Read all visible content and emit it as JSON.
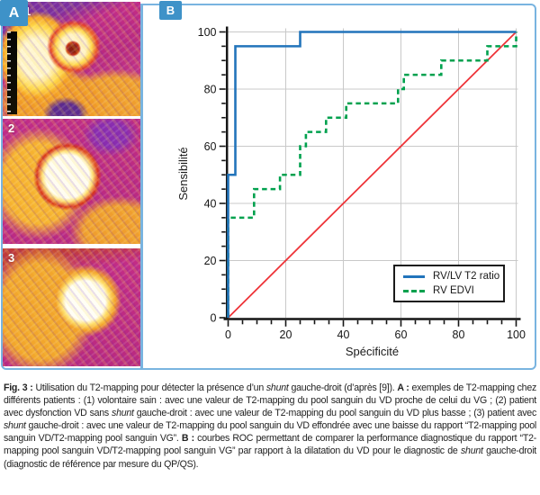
{
  "figure": {
    "panel_a": {
      "badge": "A",
      "image_labels": [
        "1",
        "2",
        "3"
      ]
    },
    "panel_b": {
      "badge": "B"
    }
  },
  "chart_data": {
    "type": "line",
    "subtype": "ROC step curves",
    "xlabel": "Spécificité",
    "ylabel": "Sensibilité",
    "xlim": [
      0,
      100
    ],
    "ylim": [
      0,
      100
    ],
    "x_ticks": [
      0,
      20,
      40,
      60,
      80,
      100
    ],
    "y_ticks": [
      0,
      20,
      40,
      60,
      80,
      100
    ],
    "minor_tick_step": 5,
    "grid": true,
    "legend_position": "lower-right",
    "colors": {
      "grid": "#c9c9c9",
      "axis": "#151515",
      "frame_blue": "#79b4e0",
      "badge_blue": "#3e92c8"
    },
    "series": [
      {
        "name": "RV/LV T2 ratio",
        "color": "#2274bb",
        "style": "solid",
        "points": [
          [
            0,
            0
          ],
          [
            0,
            50
          ],
          [
            2.5,
            50
          ],
          [
            2.5,
            95
          ],
          [
            25,
            95
          ],
          [
            25,
            100
          ],
          [
            100,
            100
          ]
        ]
      },
      {
        "name": "RV EDVI",
        "color": "#00a14e",
        "style": "dashed",
        "points": [
          [
            0,
            0
          ],
          [
            0,
            35
          ],
          [
            9,
            35
          ],
          [
            9,
            45
          ],
          [
            18,
            45
          ],
          [
            18,
            50
          ],
          [
            25,
            50
          ],
          [
            25,
            60
          ],
          [
            27,
            60
          ],
          [
            27,
            65
          ],
          [
            34,
            65
          ],
          [
            34,
            70
          ],
          [
            41,
            70
          ],
          [
            41,
            75
          ],
          [
            59,
            75
          ],
          [
            59,
            80
          ],
          [
            61,
            80
          ],
          [
            61,
            85
          ],
          [
            74,
            85
          ],
          [
            74,
            90
          ],
          [
            90,
            90
          ],
          [
            90,
            95
          ],
          [
            100,
            95
          ],
          [
            100,
            100
          ]
        ]
      },
      {
        "name": "reference",
        "role": "reference",
        "color": "#ee3338",
        "style": "solid",
        "in_legend": false,
        "points": [
          [
            0,
            0
          ],
          [
            100,
            100
          ]
        ]
      }
    ]
  },
  "caption": {
    "segments": [
      {
        "text": "Fig. 3 : ",
        "style": "bold"
      },
      {
        "text": "Utilisation du T2-mapping pour détecter la présence d’un ",
        "style": "regular"
      },
      {
        "text": "shunt",
        "style": "italic"
      },
      {
        "text": " gauche-droit (d’après [9]). ",
        "style": "regular"
      },
      {
        "text": "A :",
        "style": "bold"
      },
      {
        "text": " exemples de T2-mapping chez différents patients : (1) volontaire sain : avec une valeur de T2-mapping du pool sanguin du VD proche de celui du VG ; (2) patient avec dysfonction VD sans ",
        "style": "regular"
      },
      {
        "text": "shunt",
        "style": "italic"
      },
      {
        "text": " gauche-droit : avec une valeur de T2-mapping du pool sanguin du VD plus basse ; (3) patient avec ",
        "style": "regular"
      },
      {
        "text": "shunt",
        "style": "italic"
      },
      {
        "text": " gauche-droit : avec une valeur de T2-mapping du pool sanguin du VD effondrée avec une baisse du rapport “T2-mapping pool sanguin VD/T2-mapping pool sanguin VG”. ",
        "style": "regular"
      },
      {
        "text": "B :",
        "style": "bold"
      },
      {
        "text": " courbes ROC permettant de comparer la performance diagnostique du rapport “T2-mapping pool sanguin VD/T2-mapping pool sanguin VG” par rapport à la dilatation du VD pour le diagnostic de ",
        "style": "regular"
      },
      {
        "text": "shunt",
        "style": "italic"
      },
      {
        "text": " gauche-droit (diagnostic de référence par mesure du QP/QS).",
        "style": "regular"
      }
    ]
  }
}
